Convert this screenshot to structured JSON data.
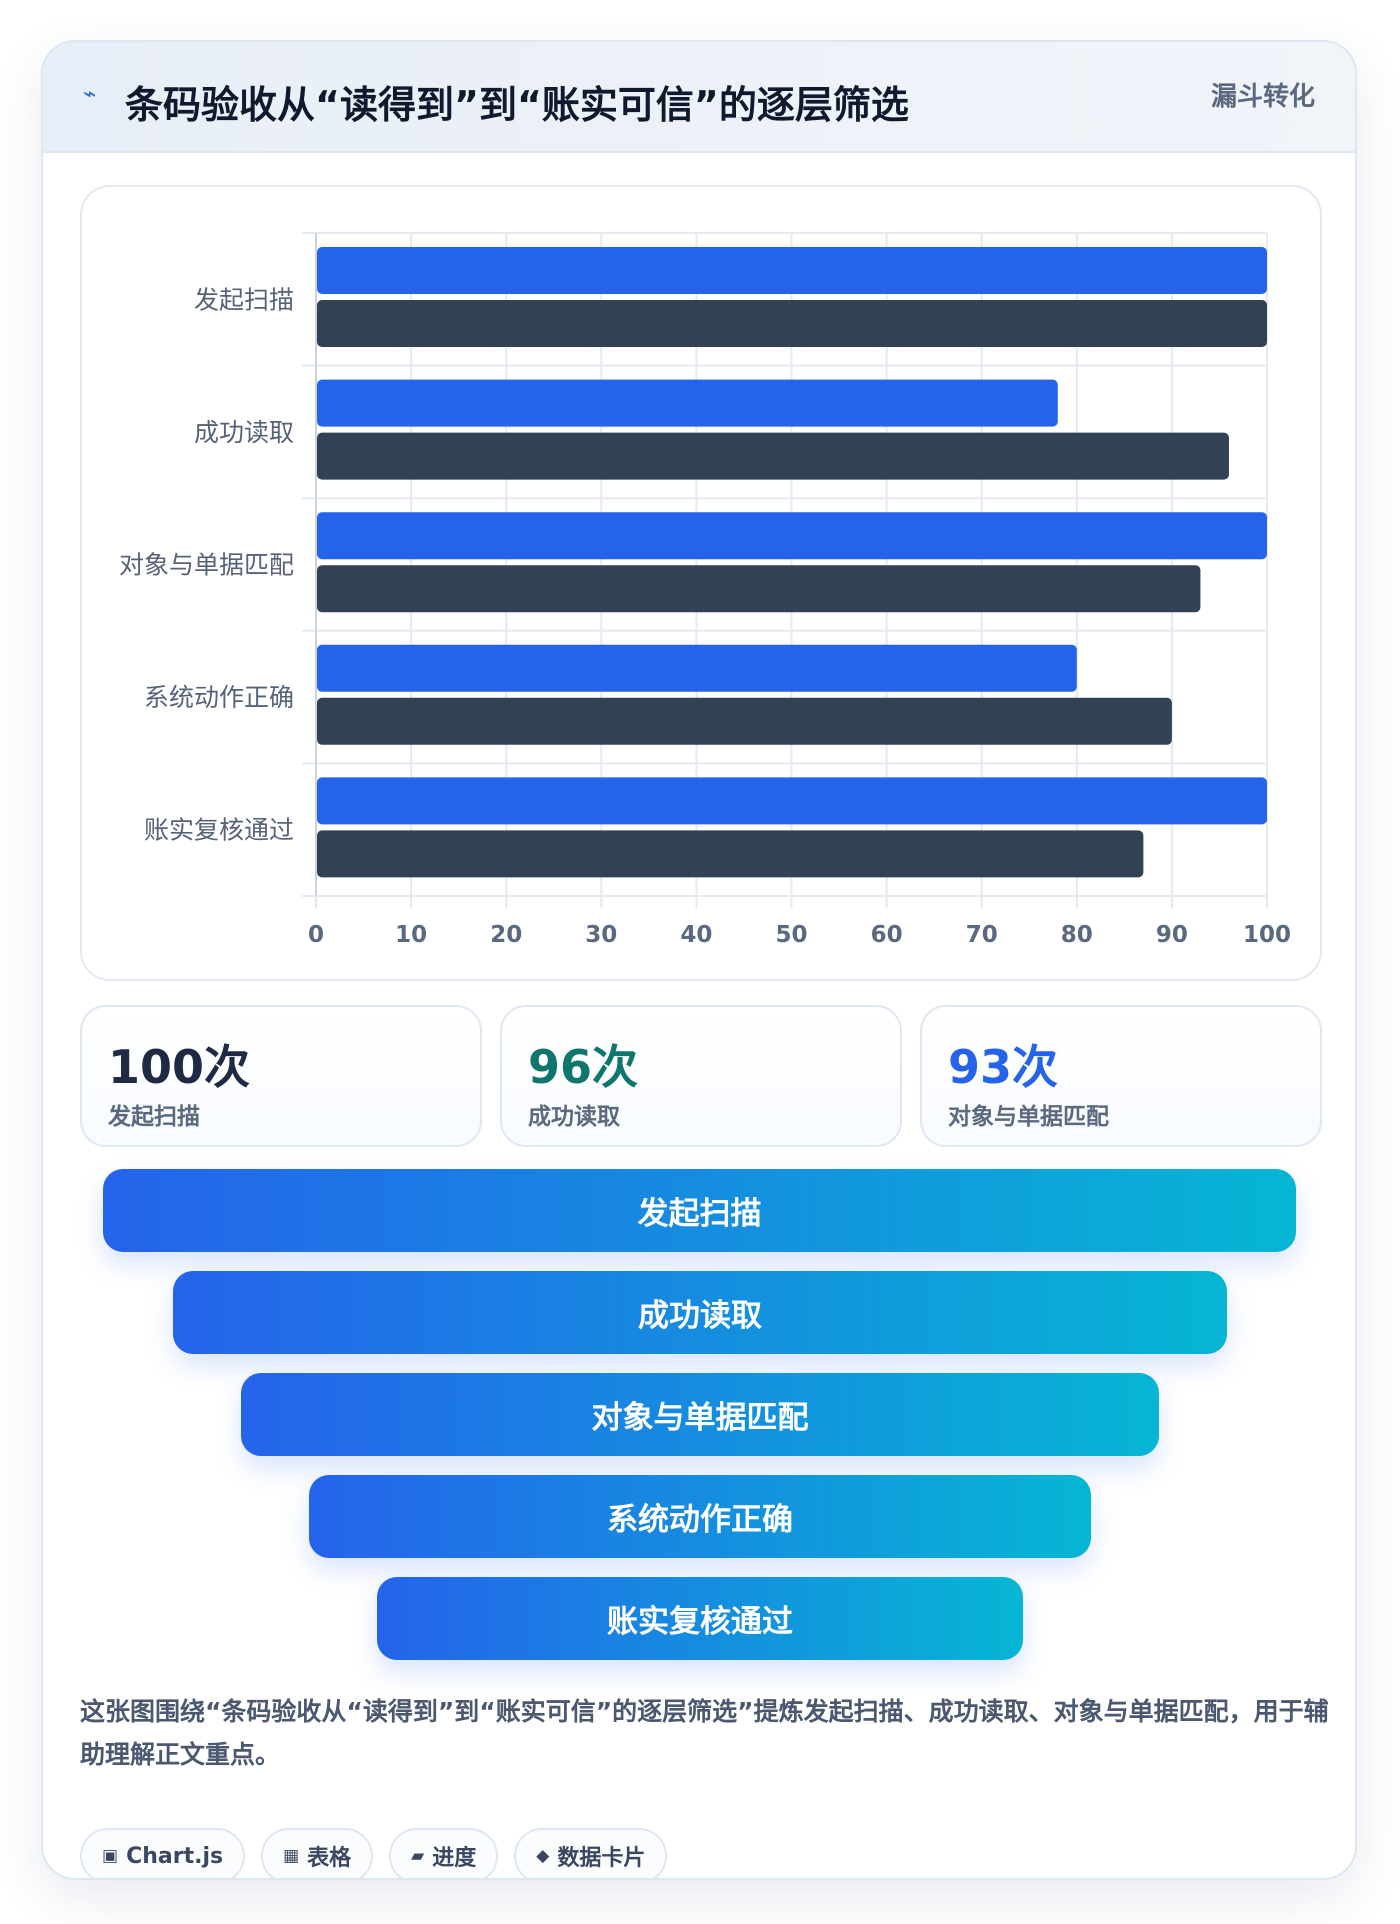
{
  "header": {
    "title": "条码验收从“读得到”到“账实可信”的逐层筛选",
    "tag": "漏斗转化",
    "icon": "bolt-icon"
  },
  "chart_data": {
    "type": "bar",
    "orientation": "horizontal",
    "categories": [
      "发起扫描",
      "成功读取",
      "对象与单据匹配",
      "系统动作正确",
      "账实复核通过"
    ],
    "series": [
      {
        "color": "#2563eb",
        "values": [
          100,
          78,
          100,
          80,
          100
        ]
      },
      {
        "color": "#334155",
        "values": [
          100,
          96,
          93,
          90,
          87
        ]
      }
    ],
    "xlim": [
      0,
      100
    ],
    "xticks": [
      "0",
      "10",
      "20",
      "30",
      "40",
      "50",
      "60",
      "70",
      "80",
      "90",
      "100"
    ],
    "grid": true,
    "title": "",
    "xlabel": "",
    "ylabel": ""
  },
  "stats": [
    {
      "value": "100次",
      "label": "发起扫描",
      "color": "#1f2a44"
    },
    {
      "value": "96次",
      "label": "成功读取",
      "color": "#0f766e"
    },
    {
      "value": "93次",
      "label": "对象与单据匹配",
      "color": "#2563eb"
    }
  ],
  "funnel": [
    "发起扫描",
    "成功读取",
    "对象与单据匹配",
    "系统动作正确",
    "账实复核通过"
  ],
  "caption": "这张图围绕“条码验收从“读得到”到“账实可信”的逐层筛选”提炼发起扫描、成功读取、对象与单据匹配，用于辅助理解正文重点。",
  "chips": [
    {
      "icon": "chart-icon",
      "glyph": "▣",
      "label": "Chart.js"
    },
    {
      "icon": "table-icon",
      "glyph": "▦",
      "label": "表格"
    },
    {
      "icon": "progress-icon",
      "glyph": "▰",
      "label": "进度"
    },
    {
      "icon": "card-icon",
      "glyph": "◆",
      "label": "数据卡片"
    }
  ]
}
